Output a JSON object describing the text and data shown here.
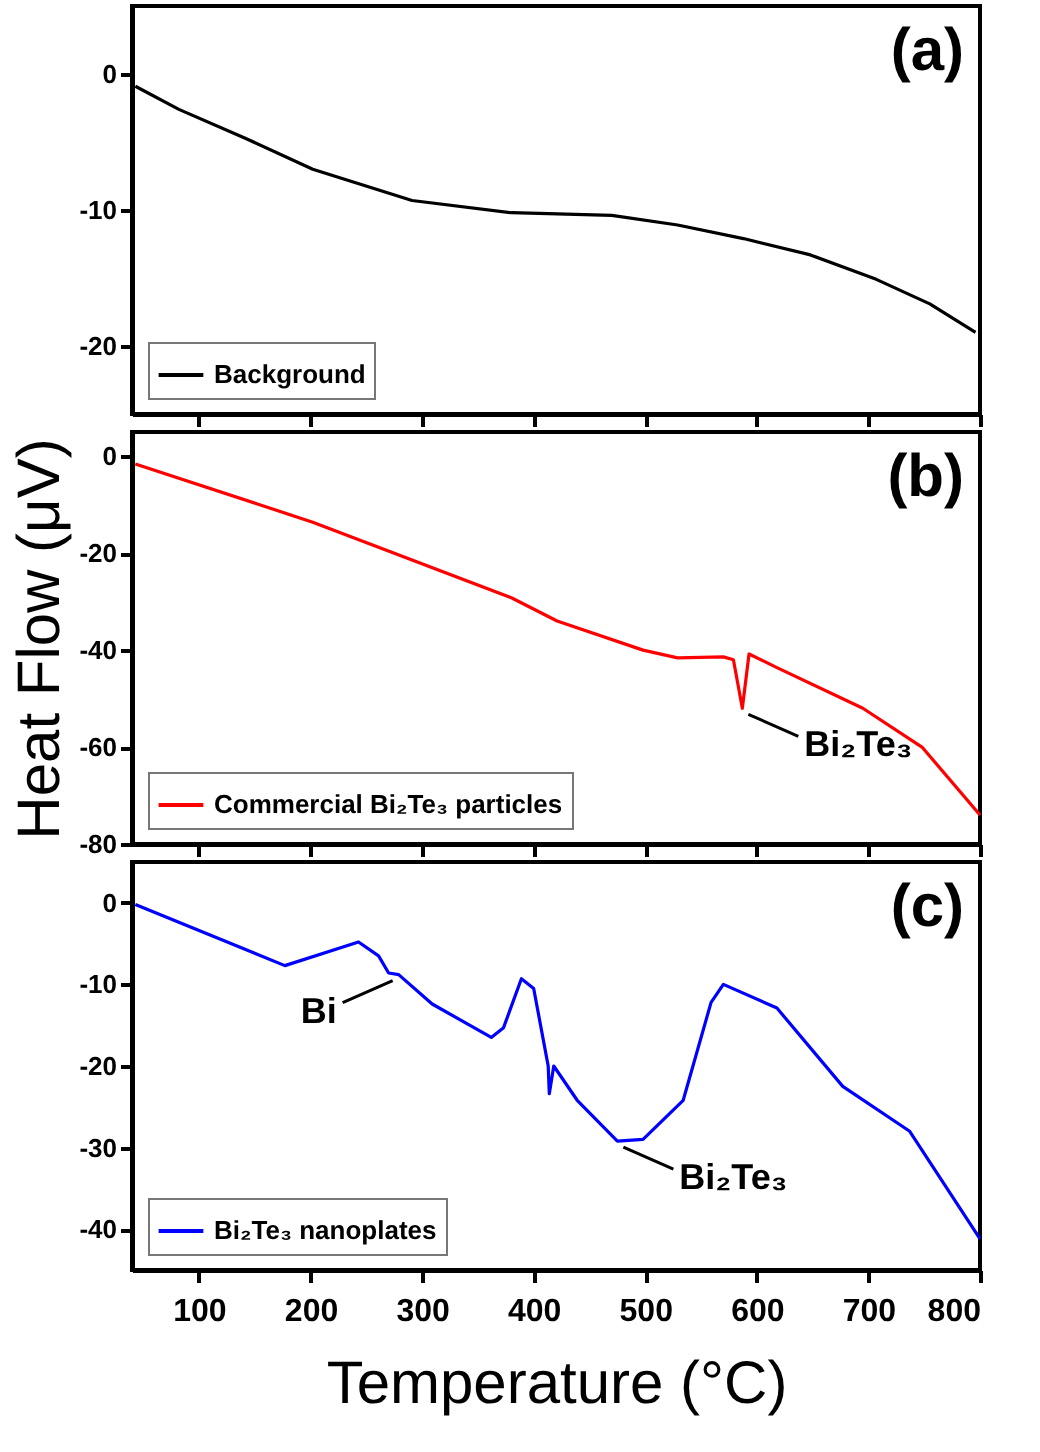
{
  "chart_data": [
    {
      "type": "line",
      "xlim": [
        40,
        800
      ],
      "xticks": [
        100,
        200,
        300,
        400,
        500,
        600,
        700,
        800
      ],
      "ylim": [
        -25,
        5
      ],
      "yticks": [
        -20,
        -10,
        0
      ],
      "tick_labels": "y",
      "legend": "bottom left",
      "annotations": [
        "(a)"
      ],
      "series": [
        {
          "name": "Background",
          "color": "#000000",
          "x": [
            43,
            82,
            141,
            202,
            291,
            380,
            470,
            529,
            588,
            648,
            707,
            755,
            796
          ],
          "values": [
            -0.9,
            -2.6,
            -4.7,
            -7.0,
            -9.3,
            -10.2,
            -10.4,
            -11.1,
            -12.1,
            -13.3,
            -15.1,
            -16.9,
            -19.0
          ]
        }
      ]
    },
    {
      "type": "line",
      "xlim": [
        40,
        800
      ],
      "xticks": [
        100,
        200,
        300,
        400,
        500,
        600,
        700,
        800
      ],
      "ylim": [
        -80,
        5
      ],
      "yticks": [
        -80,
        -60,
        -40,
        -20,
        0
      ],
      "tick_labels": "y",
      "ylabel": "Heat Flow (μV)",
      "legend": "bottom left",
      "annotations": [
        "(b)",
        {
          "text": "Bi₂Te₃",
          "x": 587,
          "y": -52
        }
      ],
      "series": [
        {
          "name": "Commercial Bi₂Te₃ particles",
          "color": "#ff0000",
          "x": [
            43,
            202,
            380,
            421,
            498,
            529,
            570,
            579,
            587,
            593,
            618,
            695,
            748,
            800
          ],
          "values": [
            -1.6,
            -13.6,
            -29.2,
            -34,
            -40,
            -41.6,
            -41.4,
            -42,
            -52,
            -40.8,
            -43.6,
            -52,
            -60,
            -74
          ]
        }
      ]
    },
    {
      "type": "line",
      "xlim": [
        40,
        800
      ],
      "xticks": [
        100,
        200,
        300,
        400,
        500,
        600,
        700,
        800
      ],
      "ylim": [
        -45,
        5
      ],
      "yticks": [
        -40,
        -30,
        -20,
        -10,
        0
      ],
      "xlabel": "Temperature (°C)",
      "legend": "bottom left",
      "annotations": [
        "(c)",
        {
          "text": "Bi",
          "x": 279,
          "y": -8.8
        },
        {
          "text": "Bi₂Te₃",
          "x": 475,
          "y": -29.2
        }
      ],
      "series": [
        {
          "name": "Bi₂Te₃ nanoplates",
          "color": "#0000ff",
          "x": [
            43,
            177,
            243,
            261,
            270,
            279,
            309,
            362,
            373,
            389,
            400,
            413,
            414,
            418,
            439,
            475,
            498,
            534,
            559,
            570,
            618,
            677,
            737,
            800
          ],
          "values": [
            -0.2,
            -7.7,
            -4.8,
            -6.5,
            -8.6,
            -8.8,
            -12.4,
            -16.5,
            -15.3,
            -9.3,
            -10.5,
            -20,
            -23.4,
            -20,
            -24.2,
            -29.2,
            -29,
            -24.2,
            -12.2,
            -10,
            -12.9,
            -22.5,
            -28,
            -41.2
          ]
        }
      ]
    }
  ]
}
